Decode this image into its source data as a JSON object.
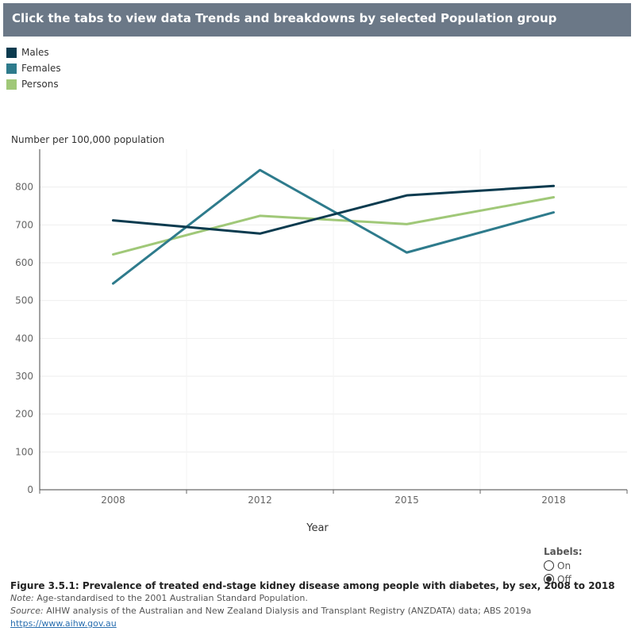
{
  "header": {
    "title": "Click the tabs to view data Trends and breakdowns by selected Population group"
  },
  "legend": [
    {
      "label": "Males",
      "color": "#0b3b4f"
    },
    {
      "label": "Females",
      "color": "#2e7b8c"
    },
    {
      "label": "Persons",
      "color": "#a0c878"
    }
  ],
  "chart_data": {
    "type": "line",
    "title": "",
    "ylabel": "Number per 100,000 population",
    "xlabel": "Year",
    "categories": [
      "2008",
      "2012",
      "2015",
      "2018"
    ],
    "ylim": [
      0,
      900
    ],
    "yticks": [
      0,
      100,
      200,
      300,
      400,
      500,
      600,
      700,
      800
    ],
    "grid": true,
    "legend_position": "top-left",
    "series": [
      {
        "name": "Males",
        "color": "#0b3b4f",
        "values": [
          712,
          677,
          778,
          803
        ]
      },
      {
        "name": "Females",
        "color": "#2e7b8c",
        "values": [
          545,
          845,
          627,
          733
        ]
      },
      {
        "name": "Persons",
        "color": "#a0c878",
        "values": [
          622,
          724,
          702,
          773
        ]
      }
    ]
  },
  "labels_control": {
    "title": "Labels:",
    "options": [
      "On",
      "Off"
    ],
    "selected": "Off"
  },
  "footer": {
    "figure_title": "Figure 3.5.1: Prevalence of treated end-stage kidney disease among people with diabetes, by sex, 2008 to 2018",
    "note_label": "Note:",
    "note_text": " Age-standardised to the 2001 Australian Standard Population.",
    "source_label": "Source:",
    "source_text": " AIHW analysis of the Australian and New Zealand Dialysis and Transplant Registry (ANZDATA) data; ABS 2019a",
    "link": "https://www.aihw.gov.au"
  }
}
